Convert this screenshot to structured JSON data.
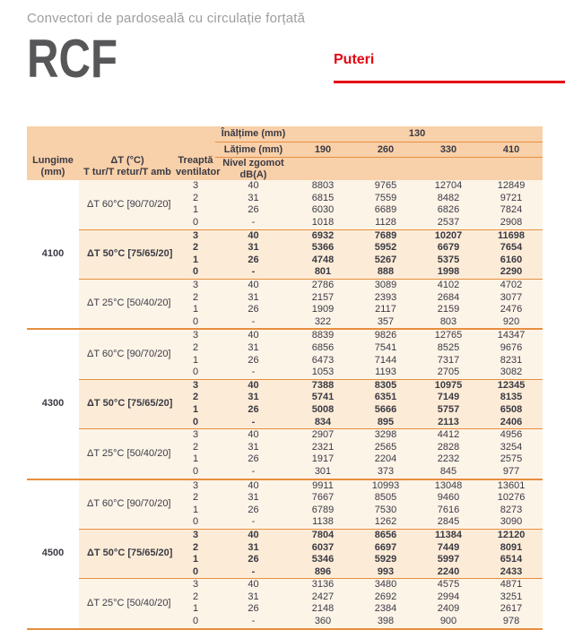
{
  "page": {
    "subtitle": "Convectori de pardoseală cu circulație forțată",
    "model": "RCF",
    "section_label": "Puteri"
  },
  "colors": {
    "accent_red": "#e30613",
    "header_peach": "#f8d0a9",
    "row_cream": "#fdf4e8",
    "row_bold_cream": "#fcecd7",
    "line_orange": "#e78f3f",
    "text_dark": "#3a3a44",
    "title_gray": "#57575a",
    "subtitle_gray": "#9d9d9c"
  },
  "table": {
    "header": {
      "lungime_line1": "Lungime",
      "lungime_line2": "(mm)",
      "dt_line1": "ΔT (°C)",
      "dt_line2": "T tur/T retur/T amb",
      "treapta_line1": "Treaptă",
      "treapta_line2": "ventilator",
      "nivel_line1": "Nivel zgomot",
      "nivel_line2": "dB(A)",
      "inaltime_label": "Înălțime (mm)",
      "inaltime_value": "130",
      "latime_label": "Lățime (mm)",
      "width_cols": [
        "190",
        "260",
        "330",
        "410"
      ]
    },
    "groups": [
      {
        "lungime": "4100",
        "blocks": [
          {
            "dt_label": "ΔT 60°C [90/70/20]",
            "bold": false,
            "rows": [
              {
                "treapta": "3",
                "nivel": "40",
                "values": [
                  "8803",
                  "9765",
                  "12704",
                  "12849"
                ]
              },
              {
                "treapta": "2",
                "nivel": "31",
                "values": [
                  "6815",
                  "7559",
                  "8482",
                  "9721"
                ]
              },
              {
                "treapta": "1",
                "nivel": "26",
                "values": [
                  "6030",
                  "6689",
                  "6826",
                  "7824"
                ]
              },
              {
                "treapta": "0",
                "nivel": "-",
                "values": [
                  "1018",
                  "1128",
                  "2537",
                  "2908"
                ]
              }
            ]
          },
          {
            "dt_label": "ΔT 50°C [75/65/20]",
            "bold": true,
            "rows": [
              {
                "treapta": "3",
                "nivel": "40",
                "values": [
                  "6932",
                  "7689",
                  "10207",
                  "11698"
                ]
              },
              {
                "treapta": "2",
                "nivel": "31",
                "values": [
                  "5366",
                  "5952",
                  "6679",
                  "7654"
                ]
              },
              {
                "treapta": "1",
                "nivel": "26",
                "values": [
                  "4748",
                  "5267",
                  "5375",
                  "6160"
                ]
              },
              {
                "treapta": "0",
                "nivel": "-",
                "values": [
                  "801",
                  "888",
                  "1998",
                  "2290"
                ]
              }
            ]
          },
          {
            "dt_label": "ΔT 25°C [50/40/20]",
            "bold": false,
            "rows": [
              {
                "treapta": "3",
                "nivel": "40",
                "values": [
                  "2786",
                  "3089",
                  "4102",
                  "4702"
                ]
              },
              {
                "treapta": "2",
                "nivel": "31",
                "values": [
                  "2157",
                  "2393",
                  "2684",
                  "3077"
                ]
              },
              {
                "treapta": "1",
                "nivel": "26",
                "values": [
                  "1909",
                  "2117",
                  "2159",
                  "2476"
                ]
              },
              {
                "treapta": "0",
                "nivel": "-",
                "values": [
                  "322",
                  "357",
                  "803",
                  "920"
                ]
              }
            ]
          }
        ]
      },
      {
        "lungime": "4300",
        "blocks": [
          {
            "dt_label": "ΔT 60°C [90/70/20]",
            "bold": false,
            "rows": [
              {
                "treapta": "3",
                "nivel": "40",
                "values": [
                  "8839",
                  "9826",
                  "12765",
                  "14347"
                ]
              },
              {
                "treapta": "2",
                "nivel": "31",
                "values": [
                  "6856",
                  "7541",
                  "8525",
                  "9676"
                ]
              },
              {
                "treapta": "1",
                "nivel": "26",
                "values": [
                  "6473",
                  "7144",
                  "7317",
                  "8231"
                ]
              },
              {
                "treapta": "0",
                "nivel": "-",
                "values": [
                  "1053",
                  "1193",
                  "2705",
                  "3082"
                ]
              }
            ]
          },
          {
            "dt_label": "ΔT 50°C [75/65/20]",
            "bold": true,
            "rows": [
              {
                "treapta": "3",
                "nivel": "40",
                "values": [
                  "7388",
                  "8305",
                  "10975",
                  "12345"
                ]
              },
              {
                "treapta": "2",
                "nivel": "31",
                "values": [
                  "5741",
                  "6351",
                  "7149",
                  "8135"
                ]
              },
              {
                "treapta": "1",
                "nivel": "26",
                "values": [
                  "5008",
                  "5666",
                  "5757",
                  "6508"
                ]
              },
              {
                "treapta": "0",
                "nivel": "-",
                "values": [
                  "834",
                  "895",
                  "2113",
                  "2406"
                ]
              }
            ]
          },
          {
            "dt_label": "ΔT 25°C [50/40/20]",
            "bold": false,
            "rows": [
              {
                "treapta": "3",
                "nivel": "40",
                "values": [
                  "2907",
                  "3298",
                  "4412",
                  "4956"
                ]
              },
              {
                "treapta": "2",
                "nivel": "31",
                "values": [
                  "2321",
                  "2565",
                  "2828",
                  "3254"
                ]
              },
              {
                "treapta": "1",
                "nivel": "26",
                "values": [
                  "1917",
                  "2204",
                  "2232",
                  "2575"
                ]
              },
              {
                "treapta": "0",
                "nivel": "-",
                "values": [
                  "301",
                  "373",
                  "845",
                  "977"
                ]
              }
            ]
          }
        ]
      },
      {
        "lungime": "4500",
        "blocks": [
          {
            "dt_label": "ΔT 60°C [90/70/20]",
            "bold": false,
            "rows": [
              {
                "treapta": "3",
                "nivel": "40",
                "values": [
                  "9911",
                  "10993",
                  "13048",
                  "13601"
                ]
              },
              {
                "treapta": "2",
                "nivel": "31",
                "values": [
                  "7667",
                  "8505",
                  "9460",
                  "10276"
                ]
              },
              {
                "treapta": "1",
                "nivel": "26",
                "values": [
                  "6789",
                  "7530",
                  "7616",
                  "8273"
                ]
              },
              {
                "treapta": "0",
                "nivel": "-",
                "values": [
                  "1138",
                  "1262",
                  "2845",
                  "3090"
                ]
              }
            ]
          },
          {
            "dt_label": "ΔT 50°C [75/65/20]",
            "bold": true,
            "rows": [
              {
                "treapta": "3",
                "nivel": "40",
                "values": [
                  "7804",
                  "8656",
                  "11384",
                  "12120"
                ]
              },
              {
                "treapta": "2",
                "nivel": "31",
                "values": [
                  "6037",
                  "6697",
                  "7449",
                  "8091"
                ]
              },
              {
                "treapta": "1",
                "nivel": "26",
                "values": [
                  "5346",
                  "5929",
                  "5997",
                  "6514"
                ]
              },
              {
                "treapta": "0",
                "nivel": "-",
                "values": [
                  "896",
                  "993",
                  "2240",
                  "2433"
                ]
              }
            ]
          },
          {
            "dt_label": "ΔT 25°C [50/40/20]",
            "bold": false,
            "rows": [
              {
                "treapta": "3",
                "nivel": "40",
                "values": [
                  "3136",
                  "3480",
                  "4575",
                  "4871"
                ]
              },
              {
                "treapta": "2",
                "nivel": "31",
                "values": [
                  "2427",
                  "2692",
                  "2994",
                  "3251"
                ]
              },
              {
                "treapta": "1",
                "nivel": "26",
                "values": [
                  "2148",
                  "2384",
                  "2409",
                  "2617"
                ]
              },
              {
                "treapta": "0",
                "nivel": "-",
                "values": [
                  "360",
                  "398",
                  "900",
                  "978"
                ]
              }
            ]
          }
        ]
      }
    ]
  }
}
